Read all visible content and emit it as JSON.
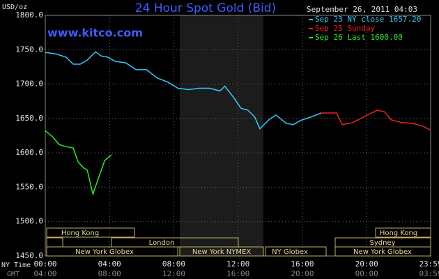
{
  "chart_data": {
    "type": "line",
    "title": "24 Hour Spot Gold (Bid)",
    "source": "www.kitco.com",
    "timestamp": "September 26, 2011 04:03",
    "ylabel": "USD/oz",
    "xlabels": [
      "NY Time",
      "GMT"
    ],
    "xlim": [
      0,
      23.98
    ],
    "ylim": [
      1450,
      1800
    ],
    "yticks": [
      {
        "value": 1450,
        "label": "1450.0"
      },
      {
        "value": 1500,
        "label": "1500.0"
      },
      {
        "value": 1550,
        "label": "1550.0"
      },
      {
        "value": 1600,
        "label": "1600.0"
      },
      {
        "value": 1650,
        "label": "1650.0"
      },
      {
        "value": 1700,
        "label": "1700.0"
      },
      {
        "value": 1750,
        "label": "1750.0"
      },
      {
        "value": 1800,
        "label": "1800.0"
      }
    ],
    "xticks": [
      {
        "value": 0,
        "label": "00:00"
      },
      {
        "value": 4,
        "label": "04:00"
      },
      {
        "value": 8,
        "label": "08:00"
      },
      {
        "value": 12,
        "label": "12:00"
      },
      {
        "value": 16,
        "label": "16:00"
      },
      {
        "value": 20,
        "label": "20:00"
      },
      {
        "value": 23.98,
        "label": "23:59"
      }
    ],
    "gmt_tick_labels": [
      "04:00",
      "08:00",
      "12:00",
      "16:00",
      "20:00",
      "00:00",
      "03:59"
    ],
    "grid": true,
    "series": [
      {
        "name": "Sep 23 NY close 1657.20",
        "color": "#33ccff",
        "x": [
          0,
          0.65,
          1.3,
          1.74,
          2.17,
          2.61,
          3.13,
          3.48,
          3.91,
          4.35,
          5,
          5.65,
          6.3,
          6.96,
          7.61,
          8.26,
          8.91,
          9.57,
          10.22,
          10.87,
          11.17,
          11.74,
          12.17,
          12.61,
          13.04,
          13.35,
          13.91,
          14.35,
          15,
          15.43,
          15.87,
          16.52,
          17.17
        ],
        "values": [
          1746,
          1744,
          1739,
          1729,
          1729,
          1735,
          1747,
          1741,
          1739,
          1733,
          1731,
          1721,
          1721,
          1709,
          1703,
          1694,
          1692,
          1694,
          1694,
          1690,
          1697,
          1680,
          1665,
          1662,
          1652,
          1635,
          1648,
          1655,
          1643,
          1641,
          1647,
          1652,
          1658
        ]
      },
      {
        "name": "Sep 25 Sunday",
        "color": "#ee2020",
        "x": [
          17.17,
          18.13,
          18.48,
          19.13,
          19.78,
          20.22,
          20.65,
          21.09,
          21.52,
          22.17,
          22.83,
          23.48,
          23.98
        ],
        "values": [
          1658,
          1658,
          1641,
          1644,
          1652,
          1657,
          1662,
          1660,
          1648,
          1644,
          1643,
          1639,
          1633
        ]
      },
      {
        "name": "Sep 26 Last 1600.00",
        "color": "#22ee22",
        "x": [
          0,
          0.43,
          0.87,
          1.3,
          1.74,
          2.04,
          2.39,
          2.61,
          2.96,
          3.26,
          3.7,
          4.13
        ],
        "values": [
          1632,
          1624,
          1612,
          1609,
          1607,
          1587,
          1578,
          1575,
          1540,
          1560,
          1589,
          1597
        ]
      }
    ],
    "sessions": [
      "Hong Kong",
      "London",
      "New York Globex",
      "New York NYMEX",
      "NY Globex",
      "New York Globex",
      "Sydney",
      "Hong Kong"
    ]
  }
}
